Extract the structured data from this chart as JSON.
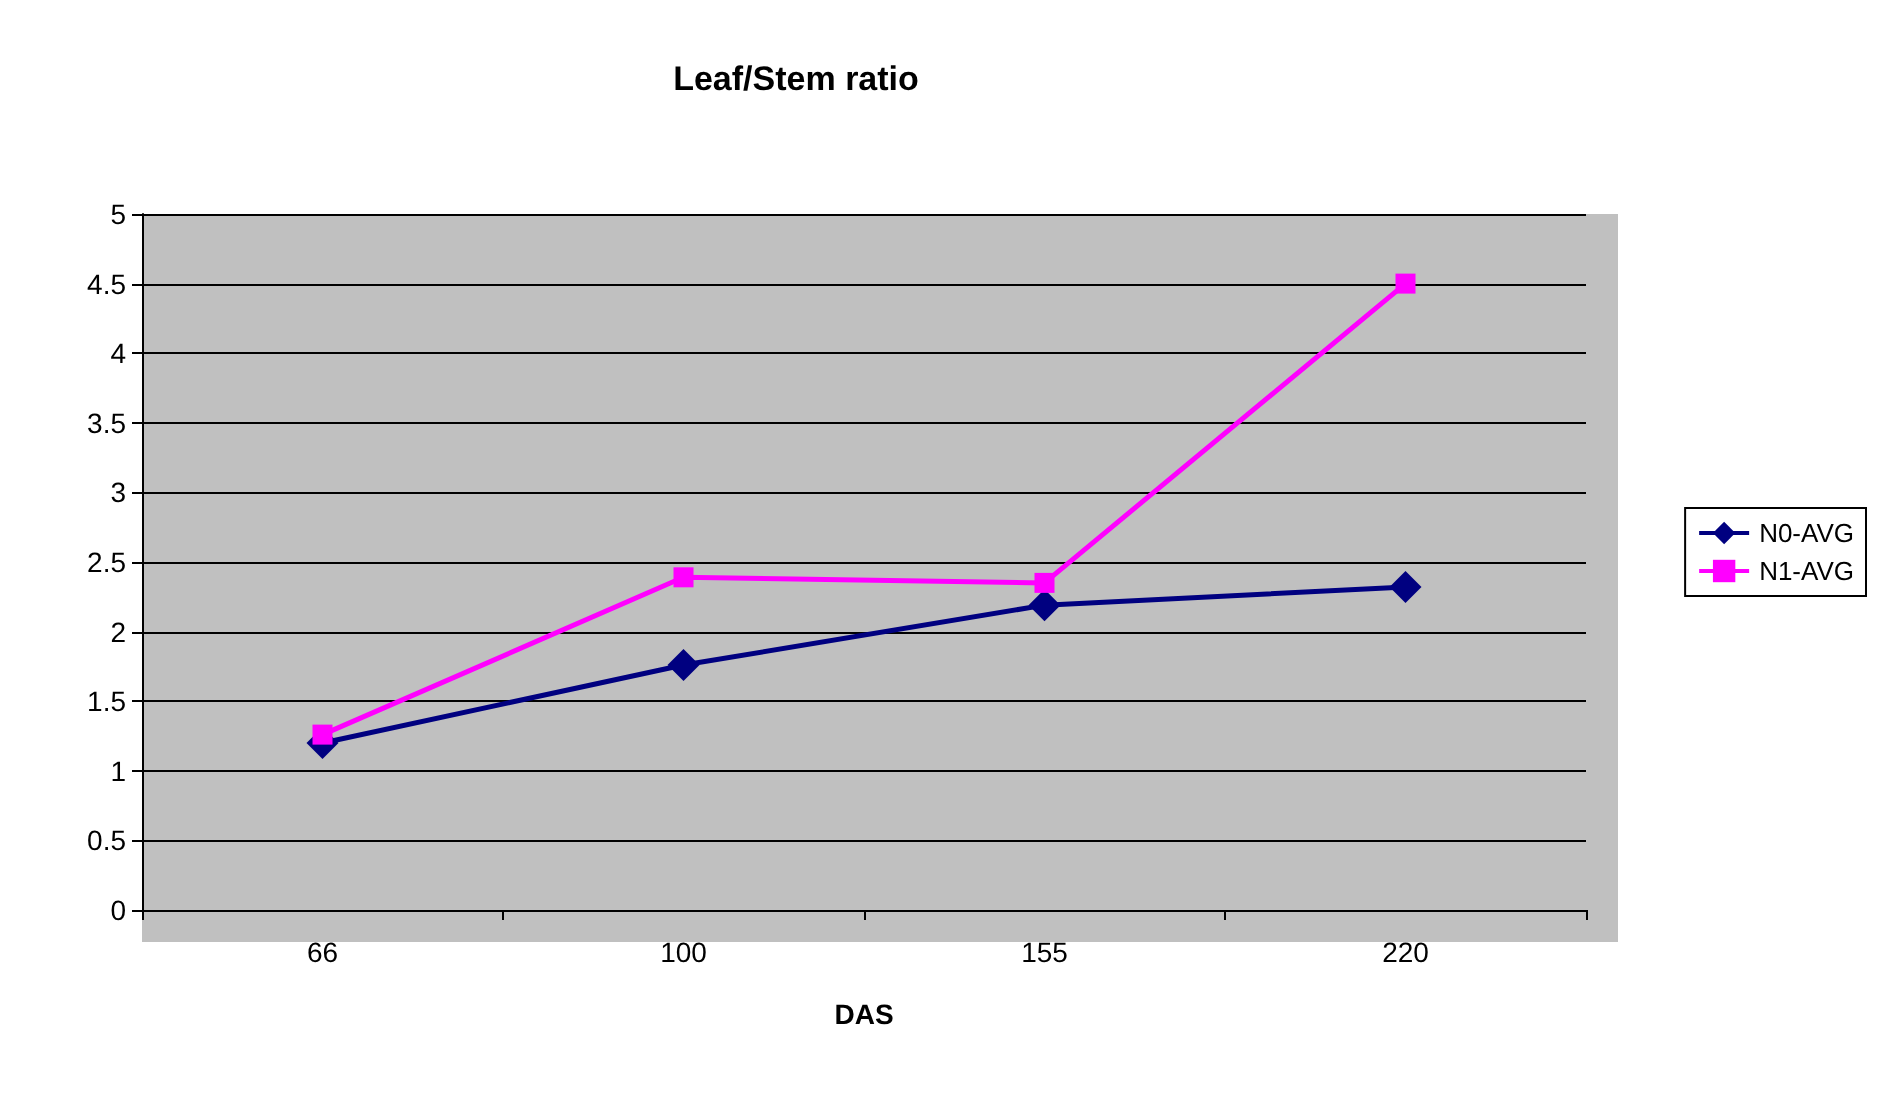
{
  "chart_data": {
    "type": "line",
    "title": "Leaf/Stem ratio",
    "xlabel": "DAS",
    "categories": [
      "66",
      "100",
      "155",
      "220"
    ],
    "series": [
      {
        "name": "N0-AVG",
        "color": "#000080",
        "marker": "diamond",
        "values": [
          1.2,
          1.76,
          2.19,
          2.32
        ]
      },
      {
        "name": "N1-AVG",
        "color": "#ff00ff",
        "marker": "square",
        "values": [
          1.26,
          2.39,
          2.35,
          4.5
        ]
      }
    ],
    "ylim": [
      0,
      5
    ],
    "yticks": [
      0,
      0.5,
      1,
      1.5,
      2,
      2.5,
      3,
      3.5,
      4,
      4.5,
      5
    ],
    "grid": "y",
    "legend": "right"
  }
}
